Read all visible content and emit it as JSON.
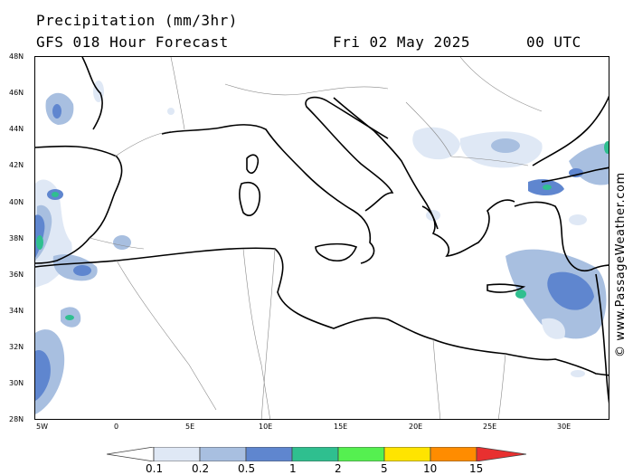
{
  "header": {
    "title": "Precipitation (mm/3hr)",
    "subtitle": "GFS 018 Hour Forecast",
    "date": "Fri 02 May 2025",
    "time": "00 UTC"
  },
  "credit": "© www.PassageWeather.com",
  "axes": {
    "lat_labels": [
      "48N",
      "46N",
      "44N",
      "42N",
      "40N",
      "38N",
      "36N",
      "34N",
      "32N",
      "30N",
      "28N"
    ],
    "lon_labels": [
      "5W",
      "0",
      "5E",
      "10E",
      "15E",
      "20E",
      "25E",
      "30E"
    ]
  },
  "legend": {
    "labels": [
      "0.1",
      "0.2",
      "0.5",
      "1",
      "2",
      "5",
      "10",
      "15"
    ],
    "colors": [
      "#ffffff",
      "#dfe8f5",
      "#a8bfe0",
      "#5f86cf",
      "#2fbf8f",
      "#55f050",
      "#ffe400",
      "#ff8c00",
      "#e83030"
    ]
  },
  "colors": {
    "precip_light": "#dfe8f5",
    "precip_medium": "#a8bfe0",
    "precip_heavy": "#5f86cf",
    "precip_very_heavy": "#2fbf8f"
  }
}
